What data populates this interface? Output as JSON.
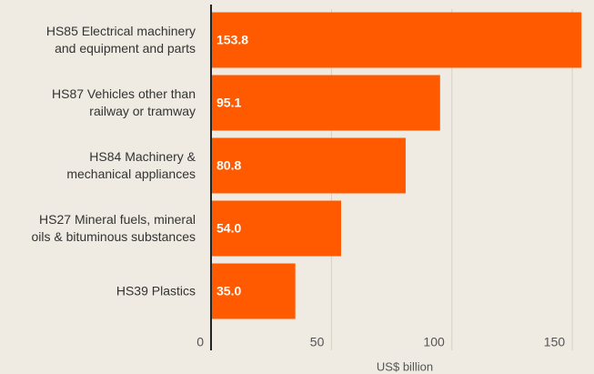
{
  "chart_data": {
    "type": "bar",
    "orientation": "horizontal",
    "categories": [
      "HS85 Electrical machinery\nand equipment and parts",
      "HS87 Vehicles other than\nrailway or tramway",
      "HS84 Machinery &\nmechanical appliances",
      "HS27 Mineral fuels, mineral\noils & bituminous substances",
      "HS39 Plastics"
    ],
    "values": [
      153.8,
      95.1,
      80.8,
      54,
      35
    ],
    "value_labels": [
      "153.8",
      "95.1",
      "80.8",
      "54.0",
      "35.0"
    ],
    "color": "#ff5a00",
    "xlabel": "US$ billion",
    "xlim": [
      0,
      159
    ],
    "xticks": [
      0,
      50,
      100,
      150
    ],
    "grid": true
  }
}
